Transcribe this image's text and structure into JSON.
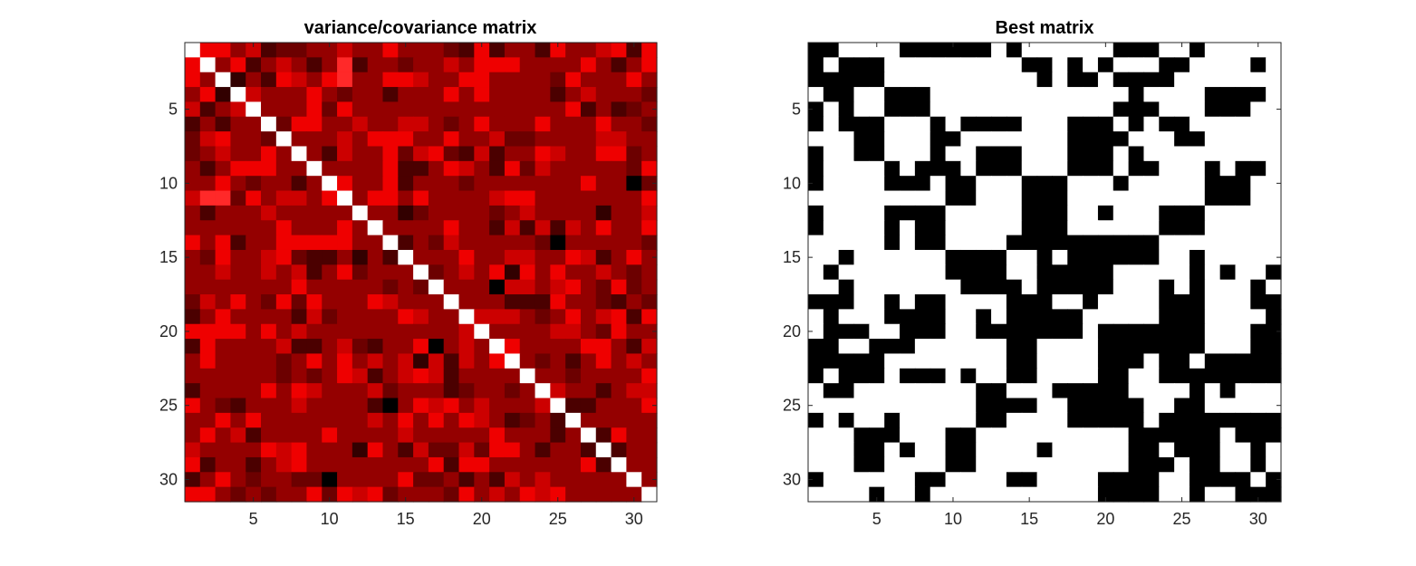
{
  "chart_data": [
    {
      "type": "heatmap",
      "title": "variance/covariance matrix",
      "colormap": [
        "#000000",
        "#8b0000",
        "#ff0000",
        "#ffffff"
      ],
      "size": 31,
      "xlim": [
        0.5,
        31.5
      ],
      "ylim": [
        0.5,
        31.5
      ],
      "y_reversed": true,
      "xticks": [
        5,
        10,
        15,
        20,
        25,
        30
      ],
      "yticks": [
        5,
        10,
        15,
        20,
        25,
        30
      ],
      "diagonal_value": 1,
      "base_value": 0.36,
      "highlight_cells": [
        {
          "row": 2,
          "col": 11,
          "value": 0.72
        },
        {
          "row": 11,
          "col": 2,
          "value": 0.72
        },
        {
          "row": 11,
          "col": 3,
          "value": 0.72
        },
        {
          "row": 3,
          "col": 11,
          "value": 0.72
        },
        {
          "row": 10,
          "col": 30,
          "value": 0
        },
        {
          "row": 30,
          "col": 10,
          "value": 0
        },
        {
          "row": 14,
          "col": 25,
          "value": 0
        },
        {
          "row": 25,
          "col": 14,
          "value": 0
        },
        {
          "row": 17,
          "col": 21,
          "value": 0
        },
        {
          "row": 21,
          "col": 17,
          "value": 0
        },
        {
          "row": 12,
          "col": 15,
          "value": 0.12
        },
        {
          "row": 15,
          "col": 12,
          "value": 0.12
        },
        {
          "row": 16,
          "col": 22,
          "value": 0.12
        },
        {
          "row": 22,
          "col": 16,
          "value": 0.12
        },
        {
          "row": 4,
          "col": 3,
          "value": 0.12
        },
        {
          "row": 3,
          "col": 4,
          "value": 0.12
        },
        {
          "row": 28,
          "col": 12,
          "value": 0.12
        },
        {
          "row": 12,
          "col": 28,
          "value": 0.12
        }
      ]
    },
    {
      "type": "heatmap",
      "title": "Best matrix",
      "colormap": [
        "#000000",
        "#ffffff"
      ],
      "size": 31,
      "xlim": [
        0.5,
        31.5
      ],
      "ylim": [
        0.5,
        31.5
      ],
      "y_reversed": true,
      "xticks": [
        5,
        10,
        15,
        20,
        25,
        30
      ],
      "yticks": [
        5,
        10,
        15,
        20,
        25,
        30
      ],
      "binary": true
    }
  ]
}
